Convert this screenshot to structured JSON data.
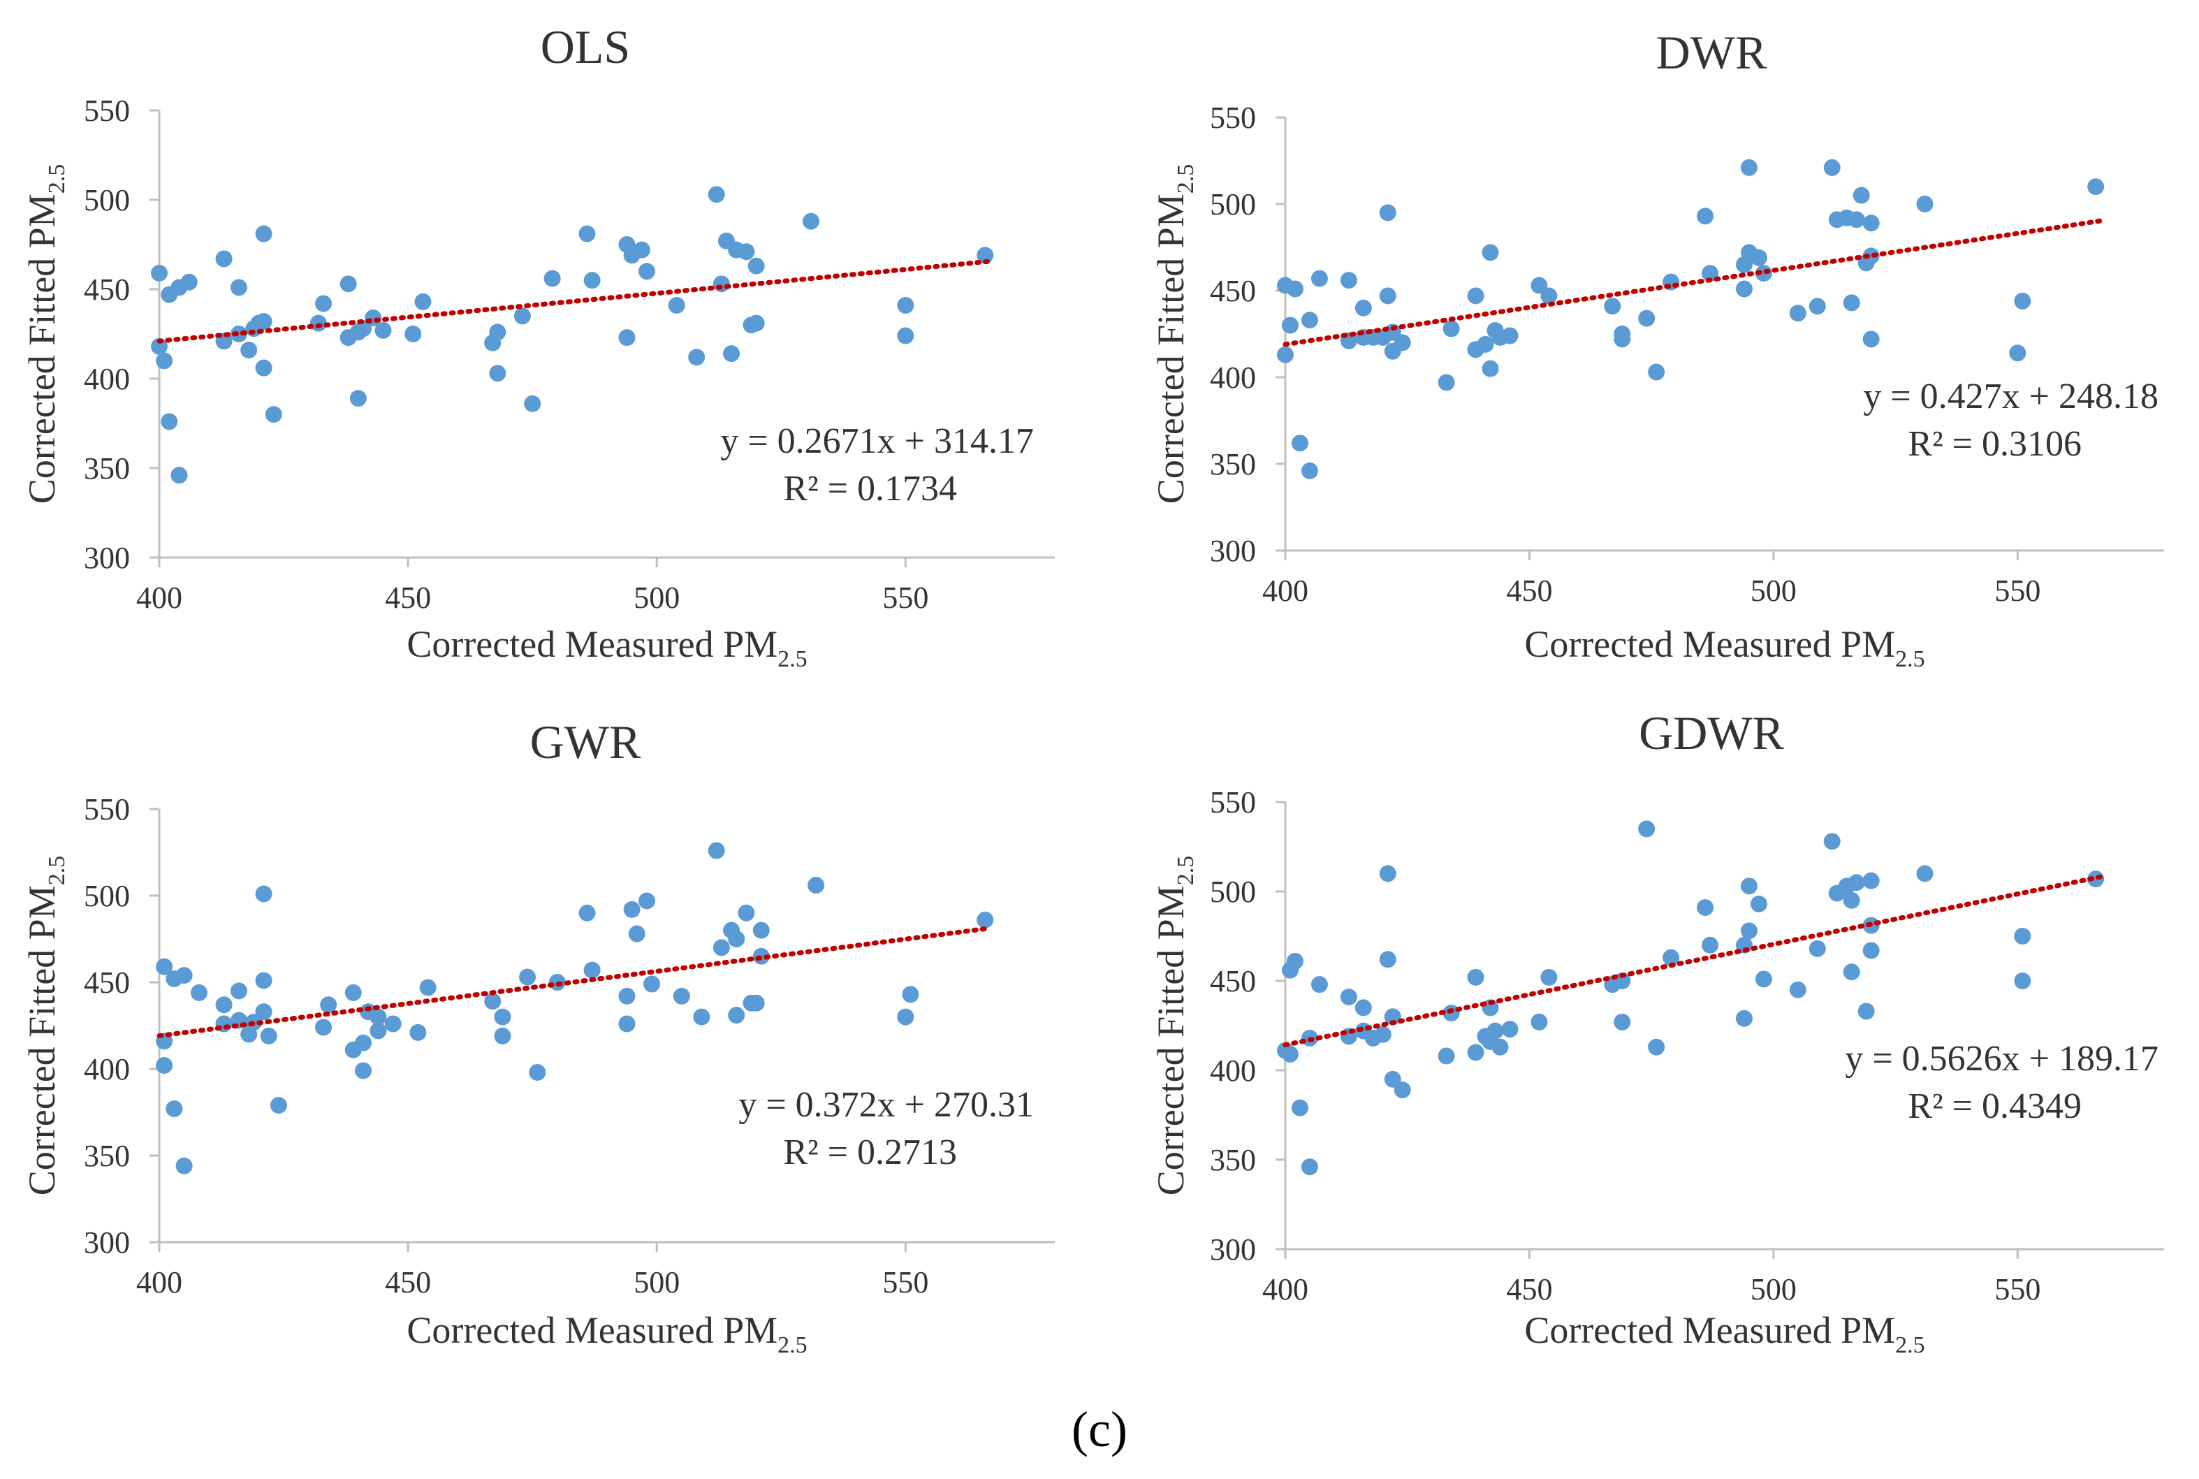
{
  "colors": {
    "point": "#5b9bd5",
    "trendline": "#c00000",
    "axis": "#bfbfbf",
    "text": "#333333"
  },
  "panel_label": "(c)",
  "chart_data": [
    {
      "type": "scatter",
      "title": "OLS",
      "xlabel_main": "Corrected Measured PM",
      "xlabel_sub": "2.5",
      "ylabel_main": "Corrected Fitted PM",
      "ylabel_sub": "2.5",
      "xlim": [
        400,
        580
      ],
      "ylim": [
        300,
        550
      ],
      "xticks": [
        400,
        450,
        500,
        550
      ],
      "yticks": [
        300,
        350,
        400,
        450,
        500,
        550
      ],
      "equation": "y = 0.2671x + 314.17",
      "r2": "R² = 0.1734",
      "trendline": {
        "slope": 0.2671,
        "intercept": 314.17,
        "x_range": [
          400,
          567
        ]
      },
      "points": [
        [
          400,
          459
        ],
        [
          400,
          418
        ],
        [
          401,
          410
        ],
        [
          402,
          447
        ],
        [
          402,
          376
        ],
        [
          404,
          451
        ],
        [
          404,
          346
        ],
        [
          406,
          454
        ],
        [
          413,
          421
        ],
        [
          413,
          467
        ],
        [
          416,
          451
        ],
        [
          416,
          425
        ],
        [
          418,
          416
        ],
        [
          419,
          428
        ],
        [
          420,
          431
        ],
        [
          421,
          481
        ],
        [
          421,
          432
        ],
        [
          421,
          406
        ],
        [
          423,
          380
        ],
        [
          432,
          431
        ],
        [
          433,
          442
        ],
        [
          438,
          423
        ],
        [
          438,
          453
        ],
        [
          440,
          426
        ],
        [
          440,
          389
        ],
        [
          441,
          428
        ],
        [
          443,
          434
        ],
        [
          445,
          427
        ],
        [
          451,
          425
        ],
        [
          453,
          443
        ],
        [
          467,
          420
        ],
        [
          468,
          426
        ],
        [
          468,
          403
        ],
        [
          473,
          435
        ],
        [
          475,
          386
        ],
        [
          479,
          456
        ],
        [
          486,
          481
        ],
        [
          487,
          455
        ],
        [
          494,
          423
        ],
        [
          494,
          475
        ],
        [
          495,
          469
        ],
        [
          497,
          472
        ],
        [
          498,
          460
        ],
        [
          504,
          441
        ],
        [
          508,
          412
        ],
        [
          512,
          503
        ],
        [
          513,
          453
        ],
        [
          514,
          477
        ],
        [
          515,
          414
        ],
        [
          516,
          472
        ],
        [
          518,
          471
        ],
        [
          519,
          430
        ],
        [
          520,
          463
        ],
        [
          520,
          431
        ],
        [
          531,
          488
        ],
        [
          550,
          441
        ],
        [
          550,
          424
        ],
        [
          566,
          469
        ]
      ]
    },
    {
      "type": "scatter",
      "title": "DWR",
      "xlabel_main": "Corrected Measured PM",
      "xlabel_sub": "2.5",
      "ylabel_main": "Corrected Fitted PM",
      "ylabel_sub": "2.5",
      "xlim": [
        400,
        580
      ],
      "ylim": [
        300,
        550
      ],
      "xticks": [
        400,
        450,
        500,
        550
      ],
      "yticks": [
        300,
        350,
        400,
        450,
        500,
        550
      ],
      "equation": "y = 0.427x + 248.18",
      "r2": "R² = 0.3106",
      "trendline": {
        "slope": 0.427,
        "intercept": 248.18,
        "x_range": [
          400,
          567
        ]
      },
      "points": [
        [
          400,
          413
        ],
        [
          400,
          453
        ],
        [
          401,
          430
        ],
        [
          402,
          451
        ],
        [
          403,
          362
        ],
        [
          405,
          346
        ],
        [
          405,
          433
        ],
        [
          407,
          457
        ],
        [
          413,
          421
        ],
        [
          413,
          456
        ],
        [
          416,
          440
        ],
        [
          416,
          423
        ],
        [
          418,
          423
        ],
        [
          420,
          423
        ],
        [
          421,
          447
        ],
        [
          421,
          495
        ],
        [
          422,
          415
        ],
        [
          422,
          426
        ],
        [
          424,
          420
        ],
        [
          433,
          397
        ],
        [
          434,
          428
        ],
        [
          439,
          416
        ],
        [
          439,
          447
        ],
        [
          441,
          419
        ],
        [
          442,
          472
        ],
        [
          442,
          405
        ],
        [
          443,
          427
        ],
        [
          444,
          423
        ],
        [
          446,
          424
        ],
        [
          452,
          453
        ],
        [
          454,
          447
        ],
        [
          467,
          441
        ],
        [
          469,
          425
        ],
        [
          469,
          422
        ],
        [
          474,
          434
        ],
        [
          476,
          403
        ],
        [
          479,
          455
        ],
        [
          486,
          493
        ],
        [
          487,
          460
        ],
        [
          494,
          451
        ],
        [
          494,
          465
        ],
        [
          495,
          521
        ],
        [
          495,
          472
        ],
        [
          497,
          469
        ],
        [
          498,
          460
        ],
        [
          505,
          437
        ],
        [
          509,
          441
        ],
        [
          512,
          521
        ],
        [
          513,
          491
        ],
        [
          515,
          492
        ],
        [
          516,
          443
        ],
        [
          517,
          491
        ],
        [
          518,
          505
        ],
        [
          519,
          466
        ],
        [
          520,
          489
        ],
        [
          520,
          470
        ],
        [
          520,
          422
        ],
        [
          531,
          500
        ],
        [
          551,
          444
        ],
        [
          550,
          414
        ],
        [
          566,
          510
        ]
      ]
    },
    {
      "type": "scatter",
      "title": "GWR",
      "xlabel_main": "Corrected Measured PM",
      "xlabel_sub": "2.5",
      "ylabel_main": "Corrected Fitted PM",
      "ylabel_sub": "2.5",
      "xlim": [
        400,
        580
      ],
      "ylim": [
        300,
        550
      ],
      "xticks": [
        400,
        450,
        500,
        550
      ],
      "yticks": [
        300,
        350,
        400,
        450,
        500,
        550
      ],
      "equation": "y = 0.372x + 270.31",
      "r2": "R² = 0.2713",
      "trendline": {
        "slope": 0.372,
        "intercept": 270.31,
        "x_range": [
          400,
          567
        ]
      },
      "points": [
        [
          401,
          459
        ],
        [
          401,
          416
        ],
        [
          401,
          402
        ],
        [
          403,
          452
        ],
        [
          403,
          377
        ],
        [
          405,
          454
        ],
        [
          405,
          344
        ],
        [
          408,
          444
        ],
        [
          413,
          426
        ],
        [
          413,
          437
        ],
        [
          416,
          445
        ],
        [
          416,
          428
        ],
        [
          418,
          420
        ],
        [
          419,
          427
        ],
        [
          421,
          451
        ],
        [
          421,
          501
        ],
        [
          421,
          433
        ],
        [
          422,
          419
        ],
        [
          424,
          379
        ],
        [
          433,
          424
        ],
        [
          434,
          437
        ],
        [
          439,
          411
        ],
        [
          439,
          444
        ],
        [
          441,
          415
        ],
        [
          441,
          399
        ],
        [
          442,
          433
        ],
        [
          444,
          422
        ],
        [
          444,
          430
        ],
        [
          447,
          426
        ],
        [
          452,
          421
        ],
        [
          454,
          447
        ],
        [
          467,
          439
        ],
        [
          469,
          430
        ],
        [
          469,
          419
        ],
        [
          474,
          453
        ],
        [
          476,
          398
        ],
        [
          480,
          450
        ],
        [
          486,
          490
        ],
        [
          487,
          457
        ],
        [
          494,
          442
        ],
        [
          494,
          426
        ],
        [
          495,
          492
        ],
        [
          496,
          478
        ],
        [
          498,
          497
        ],
        [
          499,
          449
        ],
        [
          505,
          442
        ],
        [
          509,
          430
        ],
        [
          512,
          526
        ],
        [
          513,
          470
        ],
        [
          515,
          480
        ],
        [
          516,
          431
        ],
        [
          516,
          475
        ],
        [
          518,
          490
        ],
        [
          519,
          438
        ],
        [
          520,
          438
        ],
        [
          521,
          480
        ],
        [
          521,
          465
        ],
        [
          532,
          506
        ],
        [
          551,
          443
        ],
        [
          550,
          430
        ],
        [
          566,
          486
        ]
      ]
    },
    {
      "type": "scatter",
      "title": "GDWR",
      "xlabel_main": "Corrected Measured PM",
      "xlabel_sub": "2.5",
      "ylabel_main": "Corrected Fitted PM",
      "ylabel_sub": "2.5",
      "xlim": [
        400,
        580
      ],
      "ylim": [
        300,
        550
      ],
      "xticks": [
        400,
        450,
        500,
        550
      ],
      "yticks": [
        300,
        350,
        400,
        450,
        500,
        550
      ],
      "equation": "y = 0.5626x + 189.17",
      "r2": "R² = 0.4349",
      "trendline": {
        "slope": 0.5626,
        "intercept": 189.17,
        "x_range": [
          400,
          567
        ]
      },
      "points": [
        [
          400,
          411
        ],
        [
          401,
          409
        ],
        [
          401,
          456
        ],
        [
          402,
          461
        ],
        [
          403,
          379
        ],
        [
          405,
          346
        ],
        [
          405,
          418
        ],
        [
          407,
          448
        ],
        [
          413,
          419
        ],
        [
          413,
          441
        ],
        [
          416,
          435
        ],
        [
          416,
          422
        ],
        [
          418,
          418
        ],
        [
          420,
          420
        ],
        [
          421,
          462
        ],
        [
          421,
          510
        ],
        [
          422,
          395
        ],
        [
          422,
          430
        ],
        [
          424,
          389
        ],
        [
          433,
          408
        ],
        [
          434,
          432
        ],
        [
          439,
          410
        ],
        [
          439,
          452
        ],
        [
          441,
          419
        ],
        [
          442,
          435
        ],
        [
          442,
          416
        ],
        [
          443,
          422
        ],
        [
          444,
          413
        ],
        [
          446,
          423
        ],
        [
          452,
          427
        ],
        [
          454,
          452
        ],
        [
          467,
          448
        ],
        [
          469,
          450
        ],
        [
          469,
          427
        ],
        [
          474,
          535
        ],
        [
          476,
          413
        ],
        [
          479,
          463
        ],
        [
          486,
          491
        ],
        [
          487,
          470
        ],
        [
          494,
          429
        ],
        [
          494,
          470
        ],
        [
          495,
          503
        ],
        [
          495,
          478
        ],
        [
          497,
          493
        ],
        [
          498,
          451
        ],
        [
          505,
          445
        ],
        [
          509,
          468
        ],
        [
          512,
          528
        ],
        [
          513,
          499
        ],
        [
          515,
          503
        ],
        [
          516,
          495
        ],
        [
          516,
          455
        ],
        [
          517,
          505
        ],
        [
          519,
          433
        ],
        [
          520,
          506
        ],
        [
          520,
          481
        ],
        [
          520,
          467
        ],
        [
          531,
          510
        ],
        [
          551,
          475
        ],
        [
          551,
          450
        ],
        [
          566,
          507
        ]
      ]
    }
  ]
}
